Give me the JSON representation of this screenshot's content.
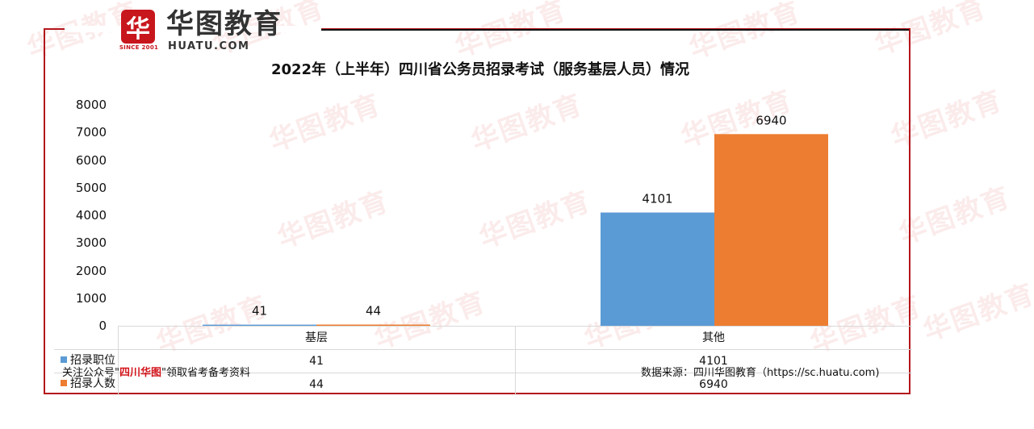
{
  "logo": {
    "mark": "华",
    "since": "SINCE 2001",
    "name": "华图教育",
    "domain": "HUATU.COM"
  },
  "watermark": {
    "text": "华图教育"
  },
  "chart_data": {
    "type": "bar",
    "title": "2022年（上半年）四川省公务员招录考试（服务基层人员）情况",
    "categories": [
      "基层",
      "其他"
    ],
    "series": [
      {
        "name": "招录职位",
        "values": [
          41,
          4101
        ],
        "color": "#5b9bd5"
      },
      {
        "name": "招录人数",
        "values": [
          44,
          6940
        ],
        "color": "#ed7d31"
      }
    ],
    "ylim": [
      0,
      8000
    ],
    "yticks": [
      "8000",
      "7000",
      "6000",
      "5000",
      "4000",
      "3000",
      "2000",
      "1000",
      "0"
    ],
    "data_labels": [
      "41",
      "44",
      "4101",
      "6940"
    ],
    "legend": "data-table",
    "grid": false
  },
  "table": {
    "rows": [
      {
        "label": "招录职位",
        "values": [
          "41",
          "4101"
        ]
      },
      {
        "label": "招录人数",
        "values": [
          "44",
          "6940"
        ]
      }
    ]
  },
  "notes": {
    "left_prefix": "关注公众号\"",
    "left_highlight": "四川华图",
    "left_suffix": "\"领取省考备考资料",
    "right": "数据来源：四川华图教育（https://sc.huatu.com)"
  }
}
